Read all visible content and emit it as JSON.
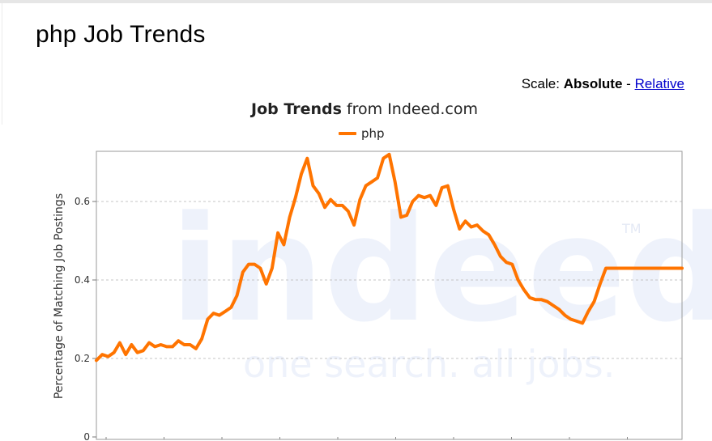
{
  "page": {
    "title": "php Job Trends",
    "scale_label": "Scale:",
    "scale_current": "Absolute",
    "scale_separator": "-",
    "scale_link": "Relative"
  },
  "chart_data": {
    "type": "line",
    "title_bold": "Job Trends",
    "title_rest": "from Indeed.com",
    "ylabel": "Percentage of Matching Job Postings",
    "ylim": [
      0,
      0.75
    ],
    "yticks": [
      {
        "value": 0,
        "label": "0"
      },
      {
        "value": 0.2,
        "label": "0.2"
      },
      {
        "value": 0.4,
        "label": "0.4"
      },
      {
        "value": 0.6,
        "label": "0.6"
      }
    ],
    "grid": true,
    "legend_position": "top",
    "watermark": {
      "logo": "indeed",
      "tagline": "one search. all jobs.",
      "tm": "TM"
    },
    "series": [
      {
        "name": "php",
        "color": "#ff7400",
        "x": [
          0,
          1,
          2,
          3,
          4,
          5,
          6,
          7,
          8,
          9,
          10,
          11,
          12,
          13,
          14,
          15,
          16,
          17,
          18,
          19,
          20,
          21,
          22,
          23,
          24,
          25,
          26,
          27,
          28,
          29,
          30,
          31,
          32,
          33,
          34,
          35,
          36,
          37,
          38,
          39,
          40,
          41,
          42,
          43,
          44,
          45,
          46,
          47,
          48,
          49,
          50,
          51,
          52,
          53,
          54,
          55,
          56,
          57,
          58,
          59,
          60,
          61,
          62,
          63,
          64,
          65,
          66,
          67,
          68,
          69,
          70,
          71,
          72,
          73,
          74,
          75,
          76,
          77,
          78,
          79,
          80,
          81,
          82,
          83,
          84,
          85,
          86,
          87,
          88,
          89,
          90,
          91,
          92,
          93,
          94,
          95,
          96,
          97,
          98,
          99,
          100
        ],
        "values": [
          0.195,
          0.21,
          0.205,
          0.215,
          0.24,
          0.21,
          0.235,
          0.215,
          0.22,
          0.24,
          0.23,
          0.235,
          0.23,
          0.23,
          0.245,
          0.235,
          0.235,
          0.225,
          0.25,
          0.3,
          0.315,
          0.31,
          0.32,
          0.33,
          0.36,
          0.42,
          0.44,
          0.44,
          0.43,
          0.39,
          0.43,
          0.52,
          0.49,
          0.56,
          0.61,
          0.67,
          0.71,
          0.64,
          0.62,
          0.585,
          0.605,
          0.59,
          0.59,
          0.575,
          0.54,
          0.605,
          0.64,
          0.65,
          0.66,
          0.71,
          0.72,
          0.65,
          0.56,
          0.565,
          0.6,
          0.615,
          0.61,
          0.615,
          0.59,
          0.635,
          0.64,
          0.58,
          0.53,
          0.55,
          0.535,
          0.54,
          0.525,
          0.515,
          0.49,
          0.46,
          0.445,
          0.44,
          0.4,
          0.375,
          0.355,
          0.35,
          0.35,
          0.345,
          0.335,
          0.325,
          0.31,
          0.3,
          0.295,
          0.29,
          0.32,
          0.345,
          0.39,
          0.43,
          0.43,
          0.43,
          0.43,
          0.43,
          0.43,
          0.43,
          0.43,
          0.43,
          0.43,
          0.43,
          0.43,
          0.43,
          0.43
        ]
      }
    ]
  }
}
